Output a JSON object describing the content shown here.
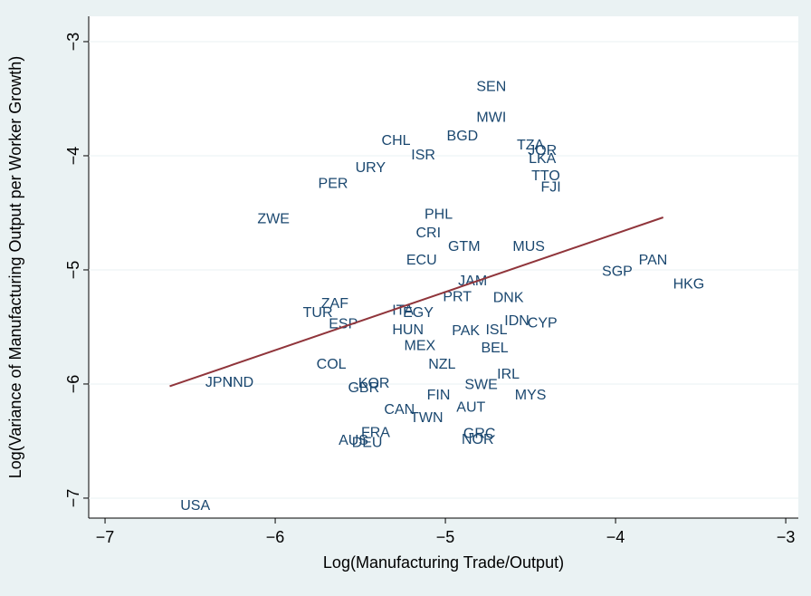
{
  "chart_data": {
    "type": "scatter",
    "x_label": "Log(Manufacturing Trade/Output)",
    "y_label": "Log(Variance of Manufacturing Output per Worker Growth)",
    "labels": [
      "SEN",
      "MWI",
      "BGD",
      "CHL",
      "ISR",
      "TZA",
      "JOR",
      "LKA",
      "URY",
      "TTO",
      "FJI",
      "PER",
      "ZWE",
      "PHL",
      "CRI",
      "GTM",
      "MUS",
      "ECU",
      "PAN",
      "SGP",
      "HKG",
      "JAM",
      "PRT",
      "DNK",
      "ZAF",
      "TUR",
      "ITA",
      "EGY",
      "ESP",
      "HUN",
      "IDN",
      "CYP",
      "PAK",
      "ISL",
      "MEX",
      "BEL",
      "COL",
      "NZL",
      "IRL",
      "JPN",
      "IND",
      "KOR",
      "GBR",
      "SWE",
      "FIN",
      "MYS",
      "CAN",
      "AUT",
      "TWN",
      "FRA",
      "GRC",
      "NOR",
      "AUS",
      "DEU",
      "USA"
    ],
    "x": [
      -4.73,
      -4.73,
      -4.9,
      -5.29,
      -5.13,
      -4.5,
      -4.43,
      -4.43,
      -5.44,
      -4.41,
      -4.38,
      -5.66,
      -6.01,
      -5.04,
      -5.1,
      -4.89,
      -4.51,
      -5.14,
      -3.78,
      -3.99,
      -3.57,
      -4.84,
      -4.93,
      -4.63,
      -5.65,
      -5.75,
      -5.25,
      -5.16,
      -5.6,
      -5.22,
      -4.58,
      -4.43,
      -4.88,
      -4.7,
      -5.15,
      -4.71,
      -5.67,
      -5.02,
      -4.63,
      -6.33,
      -6.2,
      -5.42,
      -5.48,
      -4.79,
      -5.04,
      -4.5,
      -5.27,
      -4.85,
      -5.11,
      -5.41,
      -4.8,
      -4.81,
      -5.54,
      -5.46,
      -6.47
    ],
    "y": [
      -3.4,
      -3.67,
      -3.83,
      -3.87,
      -4.0,
      -3.91,
      -3.96,
      -4.03,
      -4.11,
      -4.18,
      -4.28,
      -4.25,
      -4.56,
      -4.52,
      -4.68,
      -4.8,
      -4.8,
      -4.92,
      -4.92,
      -5.02,
      -5.13,
      -5.1,
      -5.24,
      -5.25,
      -5.3,
      -5.38,
      -5.36,
      -5.38,
      -5.48,
      -5.53,
      -5.45,
      -5.47,
      -5.54,
      -5.53,
      -5.67,
      -5.69,
      -5.83,
      -5.83,
      -5.92,
      -5.99,
      -5.99,
      -6.0,
      -6.04,
      -6.01,
      -6.1,
      -6.1,
      -6.23,
      -6.21,
      -6.3,
      -6.43,
      -6.44,
      -6.49,
      -6.5,
      -6.52,
      -7.07
    ],
    "label_color": "#1a476f",
    "fit_line": {
      "x": [
        -6.62,
        -3.72
      ],
      "y": [
        -6.02,
        -4.54
      ],
      "color": "#90353b"
    },
    "xlim": [
      -7.096,
      -2.926
    ],
    "ylim": [
      -7.175,
      -2.778
    ],
    "xticks": [
      {
        "value": -7,
        "label": "−7"
      },
      {
        "value": -6,
        "label": "−6"
      },
      {
        "value": -5,
        "label": "−5"
      },
      {
        "value": -4,
        "label": "−4"
      },
      {
        "value": -3,
        "label": "−3"
      }
    ],
    "yticks": [
      {
        "value": -7,
        "label": "−7"
      },
      {
        "value": -6,
        "label": "−6"
      },
      {
        "value": -5,
        "label": "−5"
      },
      {
        "value": -4,
        "label": "−4"
      },
      {
        "value": -3,
        "label": "−3"
      }
    ],
    "grid": true
  }
}
